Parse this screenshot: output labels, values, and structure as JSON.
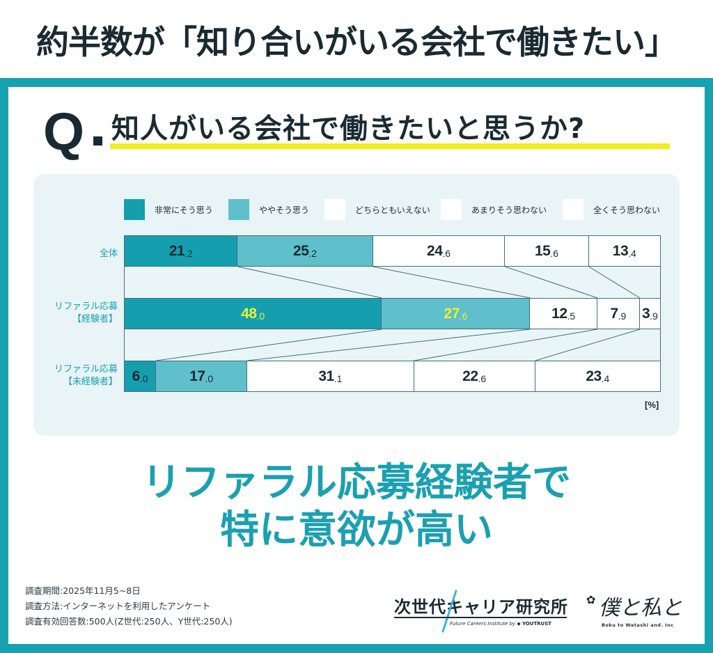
{
  "headline": "約半数が「知り合いがいる会社で働きたい」",
  "question": {
    "mark": "Q",
    "text": "知人がいる会社で働きたいと思うか?"
  },
  "chart_data": {
    "type": "bar",
    "orientation": "horizontal-stacked-100",
    "title": "知人がいる会社で働きたいと思うか?",
    "unit": "[%]",
    "categories": [
      "全体",
      "リファラル応募【経験者】",
      "リファラル応募【未経験者】"
    ],
    "series": [
      {
        "name": "非常にそう思う",
        "color": "#159fae",
        "values": [
          21.2,
          48.0,
          6.0
        ]
      },
      {
        "name": "ややそう思う",
        "color": "#5fbfcb",
        "values": [
          25.2,
          27.6,
          17.0
        ]
      },
      {
        "name": "どちらともいえない",
        "color": "#ffffff",
        "values": [
          24.6,
          12.5,
          31.1
        ]
      },
      {
        "name": "あまりそう思わない",
        "color": "#ffffff",
        "values": [
          15.6,
          7.9,
          22.6
        ]
      },
      {
        "name": "全くそう思わない",
        "color": "#ffffff",
        "values": [
          13.4,
          3.9,
          23.4
        ]
      }
    ],
    "highlight_values": [
      [
        1,
        0
      ],
      [
        1,
        1
      ]
    ],
    "highlight_color": "#eef22a",
    "legend_position": "top",
    "xlim": [
      0,
      100
    ],
    "grid": false
  },
  "row_labels": [
    {
      "line1": "全体",
      "line2": ""
    },
    {
      "line1": "リファラル応募",
      "line2": "【経験者】"
    },
    {
      "line1": "リファラル応募",
      "line2": "【未経験者】"
    }
  ],
  "unit_label": "[%]",
  "conclusion": {
    "line1": "リファラル応募経験者で",
    "line2": "特に意欲が高い"
  },
  "footnotes": [
    "調査期間:2025年11月5~8日",
    "調査方法:インターネットを利用したアンケート",
    "調査有効回答数:500人(Z世代:250人、Y世代:250人)"
  ],
  "logos": {
    "institute": {
      "title": "次世代キャリア研究所",
      "subtitle": "Future Careers Institute by",
      "brand": "YOUTRUST"
    },
    "company": {
      "script": "僕と私と",
      "subtitle": "Boku to Watashi and. Inc"
    }
  },
  "colors": {
    "frame": "#16a2b0",
    "accent_text": "#1aa0b0",
    "panel": "#e8f4f6",
    "underline": "#f3ec22",
    "connector": "#3f6f7a"
  }
}
